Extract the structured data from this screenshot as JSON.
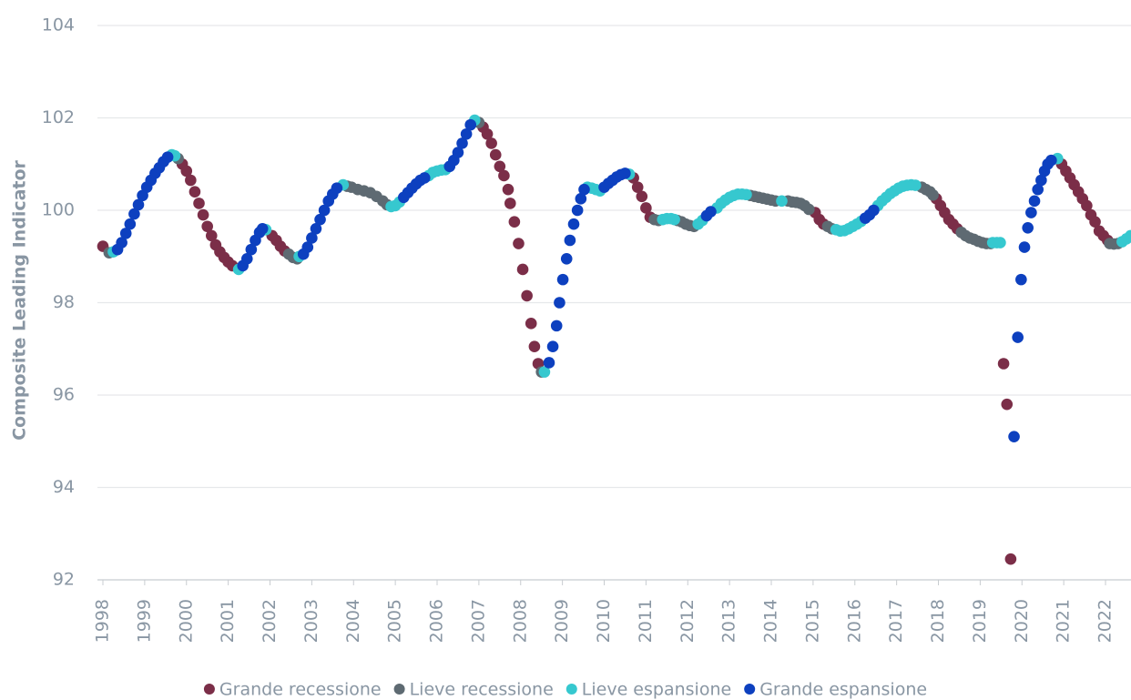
{
  "chart_data": {
    "type": "scatter",
    "y_label": "Composite Leading Indicator",
    "xlim": [
      1998,
      2022.61
    ],
    "xticks": [
      1998,
      1999,
      2000,
      2001,
      2002,
      2003,
      2004,
      2005,
      2006,
      2007,
      2008,
      2009,
      2010,
      2011,
      2012,
      2013,
      2014,
      2015,
      2016,
      2017,
      2018,
      2019,
      2020,
      2021,
      2022
    ],
    "ylim": [
      92,
      104
    ],
    "yticks": [
      92,
      94,
      96,
      98,
      100,
      102,
      104
    ],
    "grid": true,
    "legend": "bottom",
    "series": [
      {
        "name": "Grande recessione",
        "color": "#7b2e48",
        "x": [
          1998.0,
          1999.9,
          2000.0,
          2000.1,
          2000.2,
          2000.3,
          2000.4,
          2000.5,
          2000.6,
          2000.7,
          2000.8,
          2000.9,
          2001.0,
          2001.1,
          2002.05,
          2002.15,
          2002.25,
          2002.35,
          2007.1,
          2007.2,
          2007.3,
          2007.4,
          2007.5,
          2007.6,
          2007.7,
          2007.75,
          2007.85,
          2007.95,
          2008.05,
          2008.15,
          2008.25,
          2008.33,
          2008.42,
          2010.7,
          2010.8,
          2010.9,
          2011.0,
          2011.1,
          2015.05,
          2015.15,
          2015.25,
          2017.95,
          2018.05,
          2018.15,
          2018.25,
          2018.35,
          2018.45,
          2019.56,
          2019.64,
          2019.73,
          2020.95,
          2021.05,
          2021.15,
          2021.25,
          2021.35,
          2021.45,
          2021.55,
          2021.65,
          2021.75,
          2021.85,
          2021.95,
          2022.05
        ],
        "values": [
          99.22,
          101.0,
          100.85,
          100.65,
          100.4,
          100.15,
          99.9,
          99.65,
          99.45,
          99.25,
          99.1,
          98.98,
          98.88,
          98.8,
          99.45,
          99.35,
          99.22,
          99.12,
          101.8,
          101.65,
          101.45,
          101.2,
          100.95,
          100.75,
          100.45,
          100.15,
          99.75,
          99.28,
          98.72,
          98.15,
          97.55,
          97.05,
          96.68,
          100.7,
          100.5,
          100.3,
          100.05,
          99.85,
          99.95,
          99.8,
          99.7,
          100.25,
          100.1,
          99.95,
          99.8,
          99.7,
          99.6,
          96.68,
          95.8,
          92.45,
          101.0,
          100.85,
          100.7,
          100.55,
          100.4,
          100.25,
          100.1,
          99.9,
          99.75,
          99.55,
          99.45,
          99.35
        ]
      },
      {
        "name": "Lieve recessione",
        "color": "#5e6a72",
        "x": [
          1998.15,
          1999.8,
          2002.45,
          2002.55,
          2002.65,
          2003.85,
          2003.95,
          2004.1,
          2004.25,
          2004.4,
          2004.55,
          2004.7,
          2004.8,
          2007.0,
          2008.5,
          2011.2,
          2011.3,
          2011.75,
          2011.85,
          2011.95,
          2012.05,
          2012.15,
          2013.5,
          2013.6,
          2013.7,
          2013.8,
          2013.9,
          2014.0,
          2014.1,
          2014.4,
          2014.5,
          2014.6,
          2014.7,
          2014.8,
          2014.9,
          2015.35,
          2015.45,
          2017.6,
          2017.7,
          2017.8,
          2017.87,
          2018.55,
          2018.65,
          2018.75,
          2018.85,
          2018.95,
          2019.05,
          2019.15,
          2019.25,
          2022.1,
          2022.2,
          2022.3
        ],
        "values": [
          99.08,
          101.12,
          99.05,
          98.98,
          98.95,
          100.52,
          100.5,
          100.45,
          100.42,
          100.38,
          100.3,
          100.2,
          100.12,
          101.9,
          96.5,
          99.8,
          99.78,
          99.78,
          99.75,
          99.7,
          99.67,
          99.65,
          100.32,
          100.3,
          100.28,
          100.26,
          100.24,
          100.22,
          100.2,
          100.2,
          100.18,
          100.17,
          100.15,
          100.1,
          100.02,
          99.65,
          99.6,
          100.5,
          100.45,
          100.4,
          100.33,
          99.52,
          99.45,
          99.4,
          99.37,
          99.33,
          99.3,
          99.28,
          99.28,
          99.28,
          99.27,
          99.28
        ]
      },
      {
        "name": "Lieve espansione",
        "color": "#36c8cf",
        "x": [
          1998.25,
          1999.65,
          1999.72,
          2001.25,
          2001.9,
          2002.7,
          2003.75,
          2004.9,
          2005.0,
          2005.1,
          2005.8,
          2005.9,
          2006.0,
          2006.1,
          2006.2,
          2006.9,
          2008.57,
          2009.6,
          2009.7,
          2009.8,
          2009.9,
          2010.6,
          2011.4,
          2011.5,
          2011.6,
          2011.68,
          2012.25,
          2012.35,
          2012.7,
          2012.8,
          2012.9,
          2013.0,
          2013.1,
          2013.2,
          2013.3,
          2013.4,
          2014.25,
          2015.55,
          2015.65,
          2015.75,
          2015.85,
          2015.95,
          2016.05,
          2016.15,
          2016.55,
          2016.65,
          2016.75,
          2016.85,
          2016.95,
          2017.05,
          2017.15,
          2017.25,
          2017.35,
          2017.45,
          2019.3,
          2019.4,
          2019.48,
          2020.85,
          2022.4,
          2022.5,
          2022.6
        ],
        "values": [
          99.1,
          101.2,
          101.18,
          98.72,
          99.58,
          99.0,
          100.55,
          100.08,
          100.1,
          100.18,
          100.75,
          100.82,
          100.85,
          100.87,
          100.88,
          101.95,
          96.5,
          100.5,
          100.48,
          100.45,
          100.42,
          100.78,
          99.8,
          99.82,
          99.82,
          99.8,
          99.7,
          99.78,
          100.05,
          100.15,
          100.22,
          100.28,
          100.32,
          100.35,
          100.35,
          100.34,
          100.2,
          99.58,
          99.55,
          99.56,
          99.6,
          99.65,
          99.7,
          99.76,
          100.1,
          100.2,
          100.28,
          100.36,
          100.42,
          100.48,
          100.52,
          100.54,
          100.55,
          100.54,
          99.3,
          99.3,
          99.3,
          101.12,
          99.32,
          99.38,
          99.45
        ]
      },
      {
        "name": "Grande espansione",
        "color": "#0d40bf",
        "x": [
          1998.35,
          1998.45,
          1998.55,
          1998.65,
          1998.75,
          1998.85,
          1998.95,
          1999.05,
          1999.15,
          1999.25,
          1999.35,
          1999.45,
          1999.55,
          2001.35,
          2001.45,
          2001.55,
          2001.65,
          2001.75,
          2001.82,
          2002.8,
          2002.9,
          2003.0,
          2003.1,
          2003.2,
          2003.3,
          2003.4,
          2003.5,
          2003.6,
          2005.2,
          2005.3,
          2005.4,
          2005.5,
          2005.6,
          2005.7,
          2006.3,
          2006.4,
          2006.5,
          2006.6,
          2006.7,
          2006.8,
          2008.68,
          2008.77,
          2008.86,
          2008.93,
          2009.01,
          2009.1,
          2009.18,
          2009.27,
          2009.36,
          2009.44,
          2009.52,
          2010.0,
          2010.1,
          2010.2,
          2010.3,
          2010.4,
          2010.5,
          2012.45,
          2012.55,
          2016.25,
          2016.35,
          2016.45,
          2019.81,
          2019.9,
          2019.98,
          2020.06,
          2020.14,
          2020.22,
          2020.3,
          2020.38,
          2020.46,
          2020.54,
          2020.62,
          2020.7
        ],
        "values": [
          99.15,
          99.3,
          99.5,
          99.7,
          99.92,
          100.12,
          100.32,
          100.5,
          100.65,
          100.8,
          100.92,
          101.05,
          101.15,
          98.8,
          98.95,
          99.15,
          99.35,
          99.52,
          99.6,
          99.05,
          99.2,
          99.4,
          99.6,
          99.8,
          100.0,
          100.2,
          100.35,
          100.48,
          100.28,
          100.38,
          100.48,
          100.57,
          100.65,
          100.7,
          100.95,
          101.08,
          101.25,
          101.45,
          101.65,
          101.85,
          96.7,
          97.05,
          97.5,
          98.0,
          98.5,
          98.95,
          99.35,
          99.7,
          100.0,
          100.25,
          100.45,
          100.5,
          100.58,
          100.65,
          100.72,
          100.77,
          100.8,
          99.88,
          99.97,
          99.83,
          99.9,
          100.0,
          95.1,
          97.25,
          98.5,
          99.2,
          99.62,
          99.95,
          100.2,
          100.45,
          100.65,
          100.85,
          101.0,
          101.08
        ]
      }
    ]
  }
}
